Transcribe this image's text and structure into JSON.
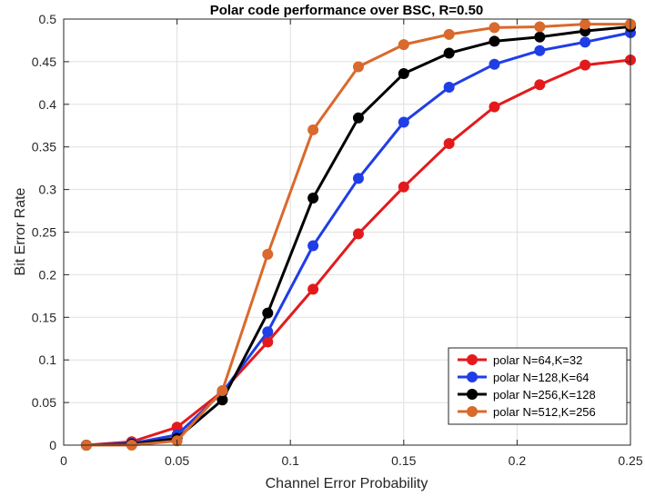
{
  "chart_data": {
    "type": "line",
    "title": "Polar code performance over BSC, R=0.50",
    "xlabel": "Channel Error Probability",
    "ylabel": "Bit Error Rate",
    "xlim": [
      0,
      0.25
    ],
    "ylim": [
      0,
      0.5
    ],
    "xticks": [
      0,
      0.05,
      0.1,
      0.15,
      0.2,
      0.25
    ],
    "xtick_labels": [
      "0",
      "0.05",
      "0.1",
      "0.15",
      "0.2",
      "0.25"
    ],
    "yticks": [
      0,
      0.05,
      0.1,
      0.15,
      0.2,
      0.25,
      0.3,
      0.35,
      0.4,
      0.45,
      0.5
    ],
    "ytick_labels": [
      "0",
      "0.05",
      "0.1",
      "0.15",
      "0.2",
      "0.25",
      "0.3",
      "0.35",
      "0.4",
      "0.45",
      "0.5"
    ],
    "grid": true,
    "legend_position": "bottom-right",
    "x": [
      0.01,
      0.03,
      0.05,
      0.07,
      0.09,
      0.11,
      0.13,
      0.15,
      0.17,
      0.19,
      0.21,
      0.23,
      0.25
    ],
    "series": [
      {
        "name": "polar N=64,K=32",
        "color": "#e31a1c",
        "values": [
          0.0,
          0.004,
          0.021,
          0.063,
          0.121,
          0.183,
          0.248,
          0.303,
          0.354,
          0.397,
          0.423,
          0.446,
          0.452
        ]
      },
      {
        "name": "polar N=128,K=64",
        "color": "#1f3ee6",
        "values": [
          0.0,
          0.002,
          0.012,
          0.062,
          0.133,
          0.234,
          0.313,
          0.379,
          0.42,
          0.447,
          0.463,
          0.473,
          0.484
        ]
      },
      {
        "name": "polar N=256,K=128",
        "color": "#000000",
        "values": [
          0.0,
          0.001,
          0.008,
          0.053,
          0.155,
          0.29,
          0.384,
          0.436,
          0.46,
          0.474,
          0.479,
          0.486,
          0.491
        ]
      },
      {
        "name": "polar N=512,K=256",
        "color": "#d9692c",
        "values": [
          0.0,
          0.0,
          0.005,
          0.064,
          0.224,
          0.37,
          0.444,
          0.47,
          0.482,
          0.49,
          0.491,
          0.494,
          0.494
        ]
      }
    ]
  }
}
